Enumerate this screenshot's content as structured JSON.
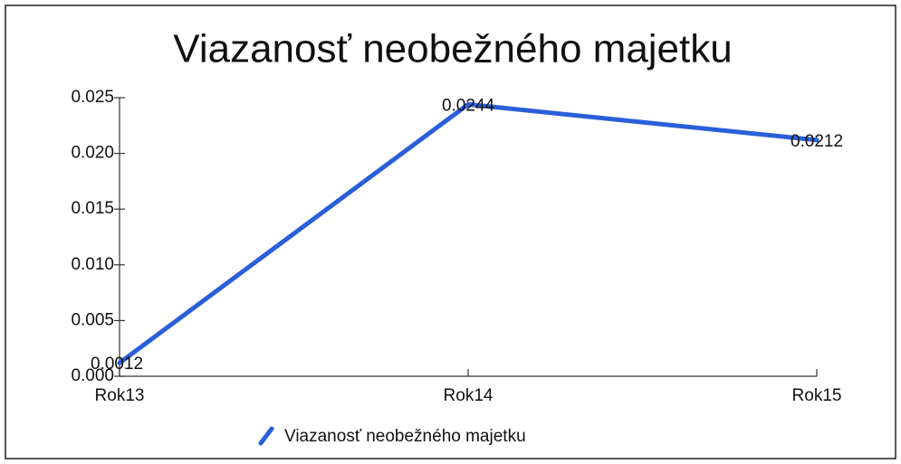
{
  "chart_data": {
    "type": "line",
    "title": "Viazanosť neobežného majetku",
    "categories": [
      "Rok13",
      "Rok14",
      "Rok15"
    ],
    "series": [
      {
        "name": "Viazanosť neobežného majetku",
        "color": "#2b5fd9",
        "values": [
          0.0012,
          0.0244,
          0.0212
        ]
      }
    ],
    "ylim": [
      0,
      0.025
    ],
    "yticks": [
      {
        "value": 0,
        "label": "0.000"
      },
      0.005,
      {
        "value": 0.01,
        "label": "0.010"
      },
      0.015,
      {
        "value": 0.02,
        "label": "0.020"
      },
      0.025
    ],
    "grid": false,
    "legend": "bottom"
  }
}
